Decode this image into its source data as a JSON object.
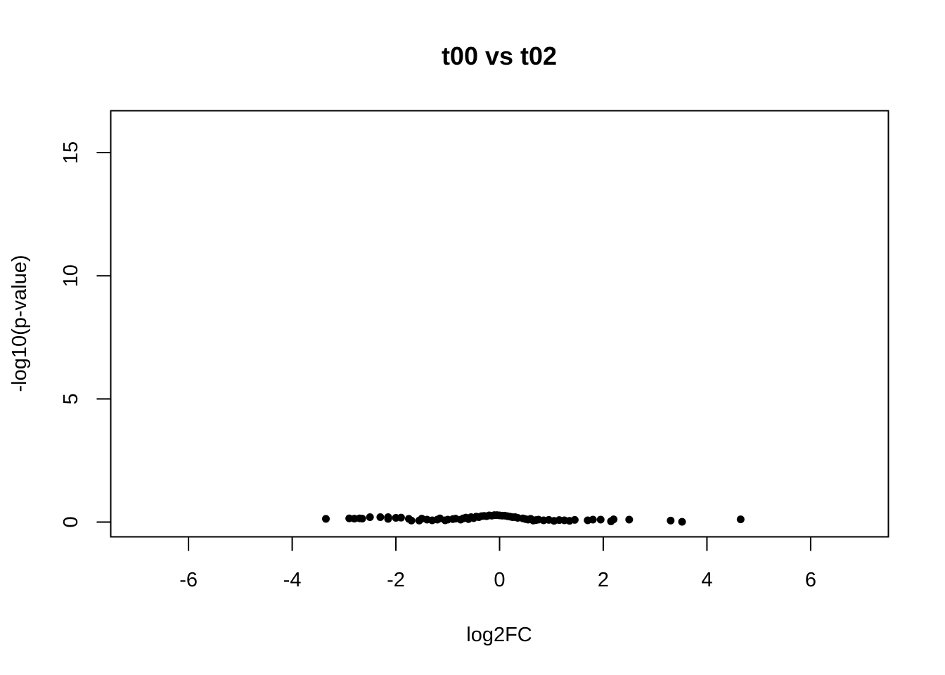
{
  "chart_data": {
    "type": "scatter",
    "title": "t00 vs t02",
    "xlabel": "log2FC",
    "ylabel": "-log10(p-value)",
    "xlim": [
      -7.5,
      7.5
    ],
    "ylim": [
      -0.6,
      16.7
    ],
    "x_ticks": [
      -6,
      -4,
      -2,
      0,
      2,
      4,
      6
    ],
    "y_ticks": [
      0,
      5,
      10,
      15
    ],
    "grid": false,
    "point_color": "#000000",
    "points": [
      {
        "x": -3.35,
        "y": 0.13
      },
      {
        "x": -2.9,
        "y": 0.15
      },
      {
        "x": -2.8,
        "y": 0.14
      },
      {
        "x": -2.7,
        "y": 0.15
      },
      {
        "x": -2.65,
        "y": 0.14
      },
      {
        "x": -2.5,
        "y": 0.2
      },
      {
        "x": -2.3,
        "y": 0.2
      },
      {
        "x": -2.15,
        "y": 0.13
      },
      {
        "x": -2.15,
        "y": 0.2
      },
      {
        "x": -2.0,
        "y": 0.17
      },
      {
        "x": -1.9,
        "y": 0.18
      },
      {
        "x": -1.75,
        "y": 0.13
      },
      {
        "x": -1.7,
        "y": 0.06
      },
      {
        "x": -1.55,
        "y": 0.06
      },
      {
        "x": -1.5,
        "y": 0.14
      },
      {
        "x": -1.4,
        "y": 0.1
      },
      {
        "x": -1.3,
        "y": 0.07
      },
      {
        "x": -1.2,
        "y": 0.1
      },
      {
        "x": -1.15,
        "y": 0.15
      },
      {
        "x": -1.05,
        "y": 0.07
      },
      {
        "x": -1.0,
        "y": 0.1
      },
      {
        "x": -0.9,
        "y": 0.12
      },
      {
        "x": -0.85,
        "y": 0.14
      },
      {
        "x": -0.75,
        "y": 0.1
      },
      {
        "x": -0.7,
        "y": 0.15
      },
      {
        "x": -0.65,
        "y": 0.18
      },
      {
        "x": -0.6,
        "y": 0.12
      },
      {
        "x": -0.55,
        "y": 0.2
      },
      {
        "x": -0.5,
        "y": 0.16
      },
      {
        "x": -0.45,
        "y": 0.22
      },
      {
        "x": -0.4,
        "y": 0.2
      },
      {
        "x": -0.35,
        "y": 0.24
      },
      {
        "x": -0.3,
        "y": 0.25
      },
      {
        "x": -0.25,
        "y": 0.24
      },
      {
        "x": -0.2,
        "y": 0.27
      },
      {
        "x": -0.15,
        "y": 0.26
      },
      {
        "x": -0.1,
        "y": 0.28
      },
      {
        "x": -0.05,
        "y": 0.28
      },
      {
        "x": 0.0,
        "y": 0.27
      },
      {
        "x": 0.05,
        "y": 0.26
      },
      {
        "x": 0.1,
        "y": 0.26
      },
      {
        "x": 0.15,
        "y": 0.24
      },
      {
        "x": 0.2,
        "y": 0.22
      },
      {
        "x": 0.25,
        "y": 0.2
      },
      {
        "x": 0.3,
        "y": 0.2
      },
      {
        "x": 0.35,
        "y": 0.17
      },
      {
        "x": 0.45,
        "y": 0.15
      },
      {
        "x": 0.5,
        "y": 0.12
      },
      {
        "x": 0.55,
        "y": 0.1
      },
      {
        "x": 0.6,
        "y": 0.13
      },
      {
        "x": 0.65,
        "y": 0.06
      },
      {
        "x": 0.7,
        "y": 0.08
      },
      {
        "x": 0.75,
        "y": 0.1
      },
      {
        "x": 0.85,
        "y": 0.07
      },
      {
        "x": 0.95,
        "y": 0.09
      },
      {
        "x": 1.05,
        "y": 0.05
      },
      {
        "x": 1.15,
        "y": 0.08
      },
      {
        "x": 1.25,
        "y": 0.07
      },
      {
        "x": 1.35,
        "y": 0.05
      },
      {
        "x": 1.45,
        "y": 0.09
      },
      {
        "x": 1.7,
        "y": 0.07
      },
      {
        "x": 1.8,
        "y": 0.1
      },
      {
        "x": 1.95,
        "y": 0.1
      },
      {
        "x": 2.15,
        "y": 0.03
      },
      {
        "x": 2.2,
        "y": 0.11
      },
      {
        "x": 2.5,
        "y": 0.1
      },
      {
        "x": 3.3,
        "y": 0.06
      },
      {
        "x": 3.52,
        "y": 0.01
      },
      {
        "x": 4.65,
        "y": 0.11
      }
    ]
  }
}
